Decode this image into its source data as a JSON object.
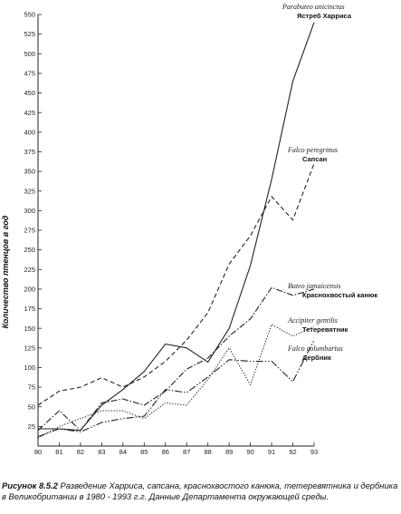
{
  "chart_data": {
    "type": "line",
    "title": "",
    "xlabel": "",
    "ylabel": "Количество птенцов в год",
    "x": [
      80,
      81,
      82,
      83,
      84,
      85,
      86,
      87,
      88,
      89,
      90,
      91,
      92,
      93
    ],
    "xticks": [
      "80",
      "81",
      "82",
      "83",
      "84",
      "85",
      "86",
      "87",
      "88",
      "89",
      "90",
      "91",
      "92",
      "93"
    ],
    "yticks": [
      0,
      25,
      50,
      75,
      100,
      125,
      150,
      175,
      200,
      225,
      250,
      275,
      300,
      325,
      350,
      375,
      400,
      425,
      450,
      475,
      500,
      525,
      550
    ],
    "ylim": [
      0,
      550
    ],
    "grid": false,
    "series": [
      {
        "latin": "Parabuteo unicinctus",
        "name": "Ястреб Харриса",
        "dash": "",
        "values": [
          22,
          22,
          20,
          52,
          72,
          95,
          130,
          125,
          107,
          150,
          230,
          340,
          465,
          540
        ]
      },
      {
        "latin": "Falco peregrinus",
        "name": "Сапсан",
        "dash": "5,3",
        "values": [
          52,
          70,
          75,
          87,
          75,
          88,
          108,
          135,
          170,
          232,
          268,
          318,
          288,
          360
        ]
      },
      {
        "latin": "Buteo jamaicensis",
        "name": "Краснохвостый канюк",
        "dash": "7,2,1.5,2",
        "values": [
          20,
          45,
          20,
          55,
          60,
          52,
          70,
          98,
          112,
          140,
          162,
          202,
          192,
          200
        ]
      },
      {
        "latin": "Accipiter gentilis",
        "name": "Тетеревятник",
        "dash": "1.2,1.8",
        "values": [
          10,
          25,
          35,
          45,
          45,
          35,
          55,
          52,
          85,
          125,
          78,
          155,
          140,
          152
        ]
      },
      {
        "latin": "Falco columbarius",
        "name": "Дербник",
        "dash": "8,2,1.5,2,1.5,2",
        "values": [
          12,
          22,
          18,
          30,
          35,
          38,
          72,
          68,
          88,
          110,
          108,
          108,
          82,
          135
        ]
      }
    ]
  },
  "caption": {
    "fig": "Рисунок 8.5.2",
    "text": " Разведение Харриса, сапсана, краснохвостого канюка, тетеревятника и дербника в Великобритании в 1980 - 1993 г.г. Данные Департамента окружающей среды."
  }
}
